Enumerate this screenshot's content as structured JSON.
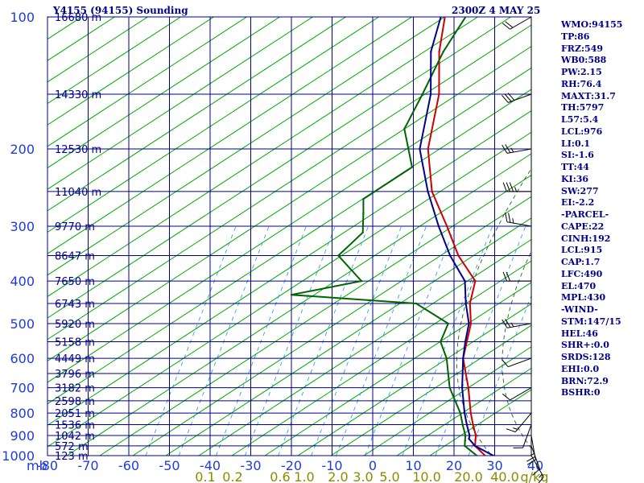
{
  "header": {
    "station": "Y4155 (94155) Sounding",
    "valid": "2300Z  4 MAY 25"
  },
  "indices": [
    "WMO:94155",
    "TP:86",
    "FRZ:549",
    "WB0:588",
    "PW:2.15",
    "RH:76.4",
    "MAXT:31.7",
    "TH:5797",
    "L57:5.4",
    "LCL:976",
    "LI:0.1",
    "SI:-1.6",
    "TT:44",
    "KI:36",
    "SW:277",
    "EI:-2.2",
    "-PARCEL-",
    "CAPE:22",
    "CINH:192",
    "LCL:915",
    "CAP:1.7",
    "LFC:490",
    "EL:470",
    "MPL:430",
    "-WIND-",
    "STM:147/15",
    "HEL:46",
    "SHR+:0.0",
    "SRDS:128",
    "EHI:0.0",
    "BRN:72.9",
    "BSHR:0"
  ],
  "chart_data": {
    "type": "line",
    "chart_kind": "skew-T log-p sounding",
    "x_ticks": [
      "-80",
      "-70",
      "-60",
      "-50",
      "-40",
      "-30",
      "-20",
      "-10",
      "0",
      "10",
      "20",
      "30",
      "40"
    ],
    "y_ticks": [
      "100",
      "200",
      "300",
      "400",
      "500",
      "600",
      "700",
      "800",
      "900",
      "1000"
    ],
    "y_scale": "log",
    "ylim": [
      1000,
      100
    ],
    "pressure_unit_label": "mb",
    "height_labels": [
      {
        "p": 100,
        "label": "16680 m"
      },
      {
        "p": 150,
        "label": "14330 m"
      },
      {
        "p": 200,
        "label": "12530 m"
      },
      {
        "p": 250,
        "label": "11040 m"
      },
      {
        "p": 300,
        "label": "9770 m"
      },
      {
        "p": 350,
        "label": "8647 m"
      },
      {
        "p": 400,
        "label": "7650 m"
      },
      {
        "p": 450,
        "label": "6743 m"
      },
      {
        "p": 500,
        "label": "5920 m"
      },
      {
        "p": 550,
        "label": "5158 m"
      },
      {
        "p": 600,
        "label": "4449 m"
      },
      {
        "p": 650,
        "label": "3796 m"
      },
      {
        "p": 700,
        "label": "3182 m"
      },
      {
        "p": 750,
        "label": "2598 m"
      },
      {
        "p": 800,
        "label": "2051 m"
      },
      {
        "p": 850,
        "label": "1536 m"
      },
      {
        "p": 900,
        "label": "1042 m"
      },
      {
        "p": 950,
        "label": "572 m"
      },
      {
        "p": 1000,
        "label": "123 m"
      }
    ],
    "mixing_ratio_labels": [
      "0.1",
      "0.2",
      "0.6",
      "1.0",
      "2.0",
      "3.0",
      "5.0",
      "10.0",
      "20.0",
      "40.0",
      "g/kg"
    ],
    "series": [
      {
        "color": "#cc0000",
        "points": [
          [
            1000,
            24
          ],
          [
            950,
            19.5
          ],
          [
            900,
            17.5
          ],
          [
            850,
            14.5
          ],
          [
            800,
            11.5
          ],
          [
            700,
            5.5
          ],
          [
            600,
            -2
          ],
          [
            500,
            -7.5
          ],
          [
            450,
            -12
          ],
          [
            400,
            -15.5
          ],
          [
            350,
            -25
          ],
          [
            300,
            -34
          ],
          [
            250,
            -45
          ],
          [
            200,
            -55
          ],
          [
            150,
            -64
          ],
          [
            120,
            -73
          ],
          [
            100,
            -79
          ]
        ]
      },
      {
        "color": "#006400",
        "points": [
          [
            1000,
            22
          ],
          [
            950,
            17
          ],
          [
            925,
            16
          ],
          [
            900,
            15
          ],
          [
            850,
            12
          ],
          [
            800,
            9
          ],
          [
            700,
            1
          ],
          [
            600,
            -6
          ],
          [
            550,
            -11
          ],
          [
            500,
            -13
          ],
          [
            450,
            -25
          ],
          [
            430,
            -57
          ],
          [
            400,
            -43
          ],
          [
            350,
            -54
          ],
          [
            310,
            -53
          ],
          [
            280,
            -57
          ],
          [
            260,
            -60
          ],
          [
            220,
            -55
          ],
          [
            180,
            -65
          ],
          [
            150,
            -68
          ],
          [
            120,
            -72
          ],
          [
            100,
            -74
          ]
        ]
      },
      {
        "color": "#00008b",
        "points": [
          [
            1000,
            26
          ],
          [
            950,
            19.5
          ],
          [
            915,
            16.5
          ],
          [
            900,
            16
          ],
          [
            850,
            13
          ],
          [
            800,
            10
          ],
          [
            700,
            4
          ],
          [
            600,
            -2
          ],
          [
            550,
            -5
          ],
          [
            500,
            -8
          ],
          [
            450,
            -13
          ],
          [
            400,
            -18
          ],
          [
            350,
            -27
          ],
          [
            300,
            -36
          ],
          [
            250,
            -46
          ],
          [
            200,
            -57
          ],
          [
            150,
            -66
          ],
          [
            120,
            -75
          ],
          [
            100,
            -80
          ]
        ]
      }
    ],
    "wind_barbs": [
      {
        "p": 1000,
        "dir": 150,
        "spd": 5
      },
      {
        "p": 950,
        "dir": 160,
        "spd": 10
      },
      {
        "p": 900,
        "dir": 170,
        "spd": 15
      },
      {
        "p": 850,
        "dir": 200,
        "spd": 10
      },
      {
        "p": 800,
        "dir": 220,
        "spd": 5
      },
      {
        "p": 700,
        "dir": 240,
        "spd": 10
      },
      {
        "p": 600,
        "dir": 250,
        "spd": 10
      },
      {
        "p": 500,
        "dir": 260,
        "spd": 15
      },
      {
        "p": 400,
        "dir": 270,
        "spd": 20
      },
      {
        "p": 300,
        "dir": 280,
        "spd": 15
      },
      {
        "p": 250,
        "dir": 270,
        "spd": 25
      },
      {
        "p": 200,
        "dir": 260,
        "spd": 15
      },
      {
        "p": 150,
        "dir": 250,
        "spd": 30
      },
      {
        "p": 100,
        "dir": 240,
        "spd": 20
      }
    ],
    "colors": {
      "frame": "#00008b",
      "dry_adiabat": "#00aa00",
      "moist_adiabat": "#00aa00",
      "mixing_ratio": "#1e90ff",
      "label": "#1e3cdc",
      "height": "#00008b"
    }
  }
}
